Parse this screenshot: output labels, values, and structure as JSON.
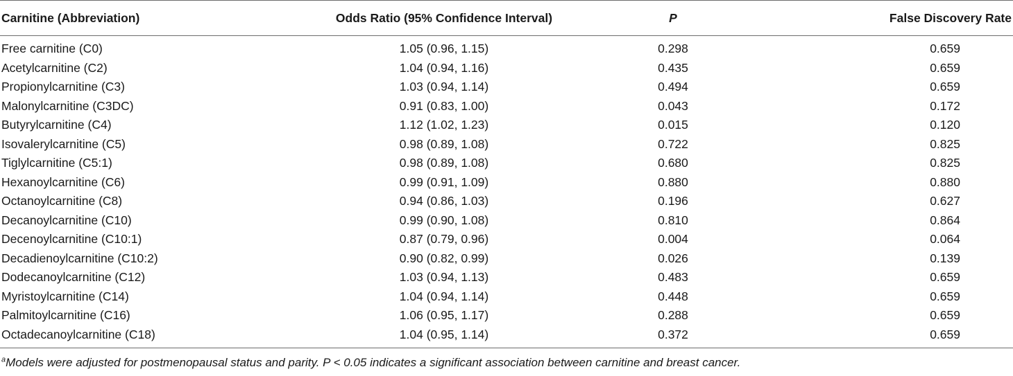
{
  "table": {
    "headers": {
      "carnitine": "Carnitine (Abbreviation)",
      "odds_ratio": "Odds Ratio (95% Confidence Interval)",
      "p": "P",
      "fdr": "False Discovery Rate"
    },
    "rows": [
      {
        "carnitine": "Free carnitine (C0)",
        "odds_ratio": "1.05 (0.96, 1.15)",
        "p": "0.298",
        "fdr": "0.659"
      },
      {
        "carnitine": "Acetylcarnitine (C2)",
        "odds_ratio": "1.04 (0.94, 1.16)",
        "p": "0.435",
        "fdr": "0.659"
      },
      {
        "carnitine": "Propionylcarnitine (C3)",
        "odds_ratio": "1.03 (0.94, 1.14)",
        "p": "0.494",
        "fdr": "0.659"
      },
      {
        "carnitine": "Malonylcarnitine (C3DC)",
        "odds_ratio": "0.91 (0.83, 1.00)",
        "p": "0.043",
        "fdr": "0.172"
      },
      {
        "carnitine": "Butyrylcarnitine (C4)",
        "odds_ratio": "1.12 (1.02, 1.23)",
        "p": "0.015",
        "fdr": "0.120"
      },
      {
        "carnitine": "Isovalerylcarnitine (C5)",
        "odds_ratio": "0.98 (0.89, 1.08)",
        "p": "0.722",
        "fdr": "0.825"
      },
      {
        "carnitine": "Tiglylcarnitine (C5:1)",
        "odds_ratio": "0.98 (0.89, 1.08)",
        "p": "0.680",
        "fdr": "0.825"
      },
      {
        "carnitine": "Hexanoylcarnitine (C6)",
        "odds_ratio": "0.99 (0.91, 1.09)",
        "p": "0.880",
        "fdr": "0.880"
      },
      {
        "carnitine": "Octanoylcarnitine (C8)",
        "odds_ratio": "0.94 (0.86, 1.03)",
        "p": "0.196",
        "fdr": "0.627"
      },
      {
        "carnitine": "Decanoylcarnitine (C10)",
        "odds_ratio": "0.99 (0.90, 1.08)",
        "p": "0.810",
        "fdr": "0.864"
      },
      {
        "carnitine": "Decenoylcarnitine (C10:1)",
        "odds_ratio": "0.87 (0.79, 0.96)",
        "p": "0.004",
        "fdr": "0.064"
      },
      {
        "carnitine": "Decadienoylcarnitine (C10:2)",
        "odds_ratio": "0.90 (0.82, 0.99)",
        "p": "0.026",
        "fdr": "0.139"
      },
      {
        "carnitine": "Dodecanoylcarnitine (C12)",
        "odds_ratio": "1.03 (0.94, 1.13)",
        "p": "0.483",
        "fdr": "0.659"
      },
      {
        "carnitine": "Myristoylcarnitine (C14)",
        "odds_ratio": "1.04 (0.94, 1.14)",
        "p": "0.448",
        "fdr": "0.659"
      },
      {
        "carnitine": "Palmitoylcarnitine (C16)",
        "odds_ratio": "1.06 (0.95, 1.17)",
        "p": "0.288",
        "fdr": "0.659"
      },
      {
        "carnitine": "Octadecanoylcarnitine (C18)",
        "odds_ratio": "1.04 (0.95, 1.14)",
        "p": "0.372",
        "fdr": "0.659"
      }
    ]
  },
  "footnote": {
    "marker": "a",
    "text": "Models were adjusted for postmenopausal status and parity. P < 0.05 indicates a significant association between carnitine and breast cancer."
  }
}
